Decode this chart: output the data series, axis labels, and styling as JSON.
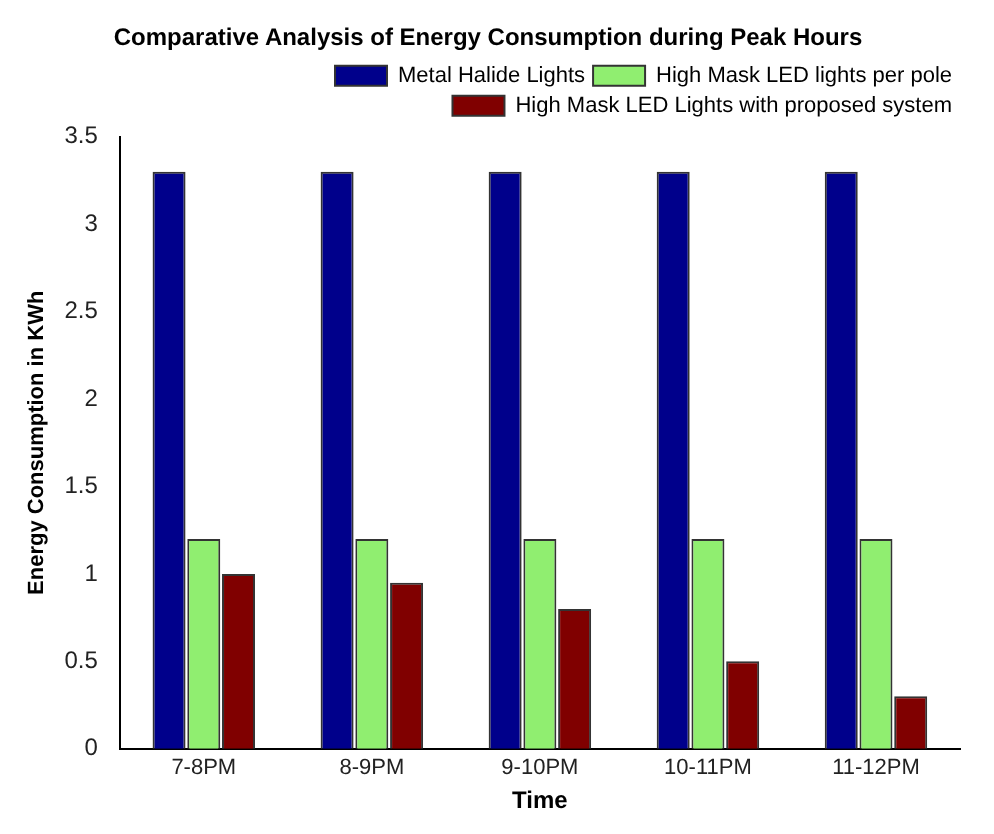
{
  "chart_data": {
    "type": "bar",
    "title": "Comparative Analysis of Energy Consumption during Peak Hours",
    "xlabel": "Time",
    "ylabel": "Energy Consumption in KWh",
    "categories": [
      "7-8PM",
      "8-9PM",
      "9-10PM",
      "10-11PM",
      "11-12PM"
    ],
    "series": [
      {
        "name": "Metal Halide Lights",
        "color": "#00008b",
        "values": [
          3.3,
          3.3,
          3.3,
          3.3,
          3.3
        ]
      },
      {
        "name": "High Mask LED lights per pole",
        "color": "#90ee70",
        "values": [
          1.2,
          1.2,
          1.2,
          1.2,
          1.2
        ]
      },
      {
        "name": "High Mask LED Lights with proposed system",
        "color": "#800000",
        "values": [
          1.0,
          0.95,
          0.8,
          0.5,
          0.3
        ]
      }
    ],
    "ylim": [
      0,
      3.5
    ],
    "yticks": [
      0,
      0.5,
      1,
      1.5,
      2,
      2.5,
      3,
      3.5
    ],
    "grid": false,
    "legend": "top right"
  }
}
